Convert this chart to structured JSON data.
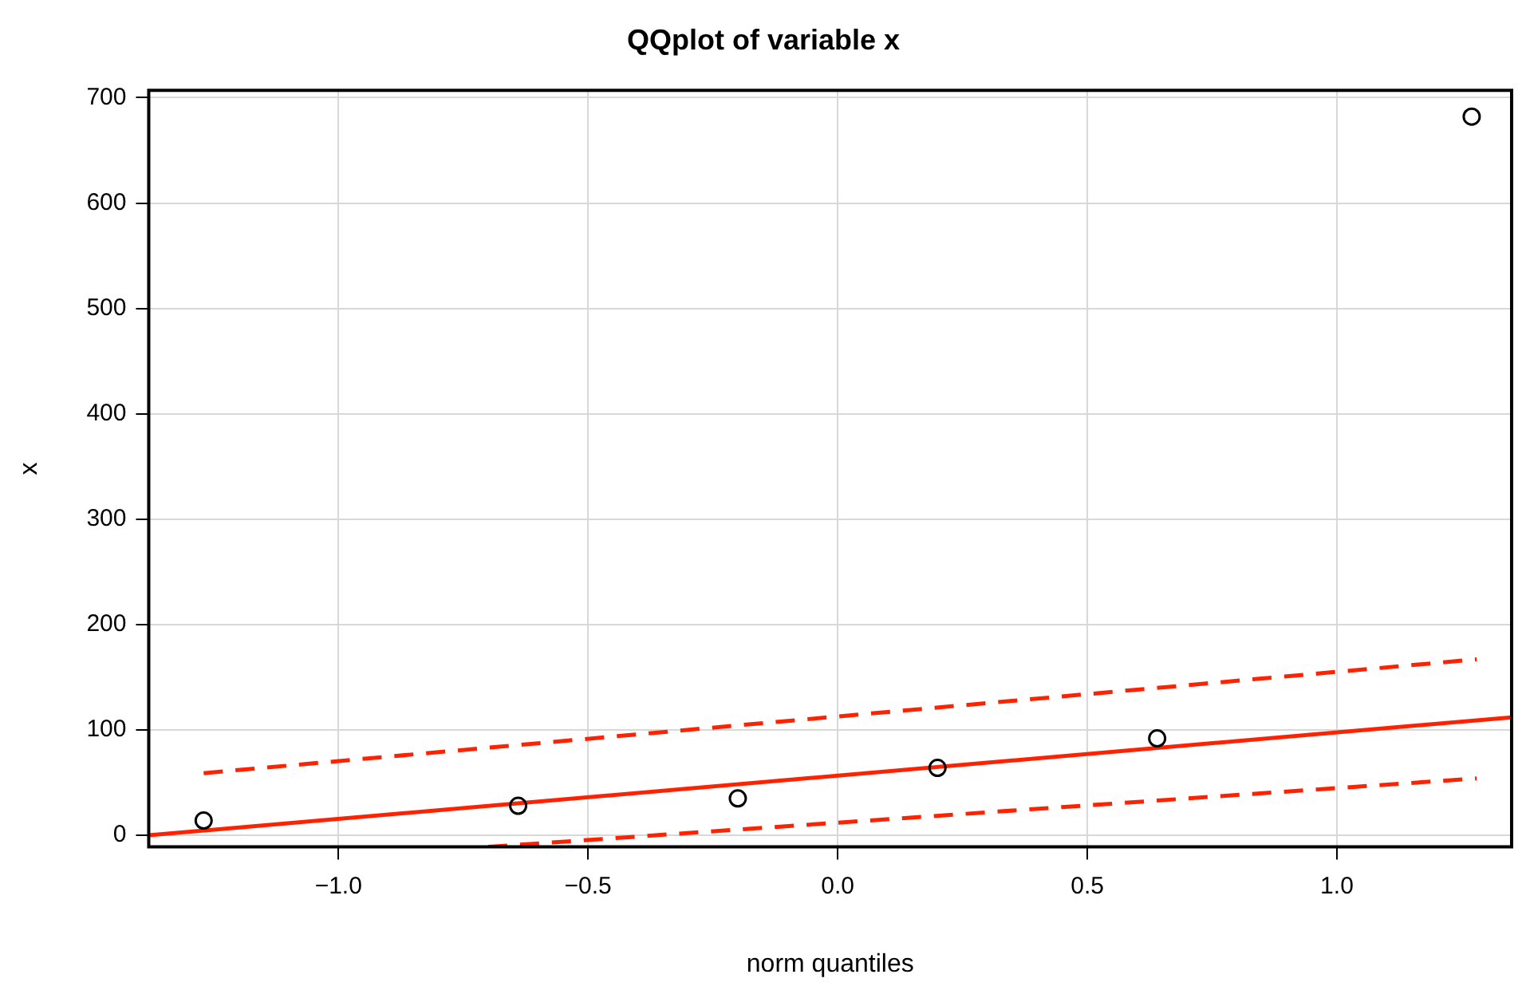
{
  "chart_data": {
    "type": "scatter",
    "title": "QQplot of variable x",
    "xlabel": "norm quantiles",
    "ylabel": "x",
    "xlim": [
      -1.38,
      1.35
    ],
    "ylim": [
      -11,
      707
    ],
    "xticks": [
      {
        "value": -1,
        "label": "−1.0"
      },
      {
        "value": -0.5,
        "label": "−0.5"
      },
      {
        "value": 0,
        "label": "0.0"
      },
      {
        "value": 0.5,
        "label": "0.5"
      },
      {
        "value": 1,
        "label": "1.0"
      }
    ],
    "yticks": [
      0,
      100,
      200,
      300,
      400,
      500,
      600,
      700
    ],
    "grid": true,
    "legend": false,
    "series": [
      {
        "color": "#000000",
        "marker": "circle",
        "x": [
          -1.27,
          -0.64,
          -0.2,
          0.2,
          0.64,
          1.27
        ],
        "values": [
          14,
          28,
          35,
          64,
          92,
          682
        ]
      },
      {
        "type": "line",
        "color": "#ff2200",
        "marker": "none",
        "line_style": "solid",
        "x": [
          -1.38,
          1.35
        ],
        "values": [
          0,
          112
        ]
      },
      {
        "type": "line",
        "color": "#ff2200",
        "marker": "none",
        "line_style": "dashed",
        "x": [
          -1.27,
          1.28
        ],
        "values": [
          59,
          167
        ]
      },
      {
        "type": "line",
        "color": "#ff2200",
        "marker": "none",
        "line_style": "dashed",
        "x": [
          -0.7,
          1.28
        ],
        "values": [
          -11,
          54
        ]
      }
    ]
  }
}
